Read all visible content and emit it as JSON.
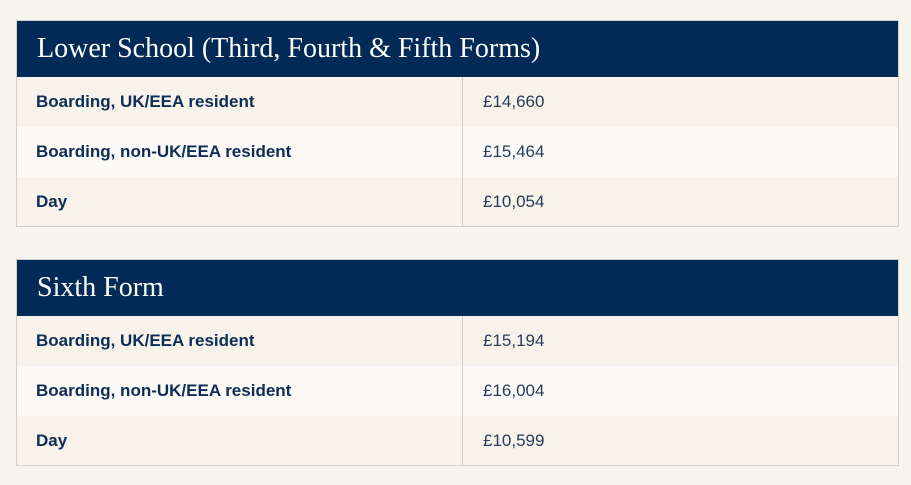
{
  "tables": [
    {
      "title": "Lower School (Third, Fourth & Fifth Forms)",
      "rows": [
        {
          "label": "Boarding, UK/EEA resident",
          "fee": "£14,660"
        },
        {
          "label": "Boarding, non-UK/EEA resident",
          "fee": "£15,464"
        },
        {
          "label": "Day",
          "fee": "£10,054"
        }
      ]
    },
    {
      "title": "Sixth Form",
      "rows": [
        {
          "label": "Boarding, UK/EEA resident",
          "fee": "£15,194"
        },
        {
          "label": "Boarding, non-UK/EEA resident",
          "fee": "£16,004"
        },
        {
          "label": "Day",
          "fee": "£10,599"
        }
      ]
    }
  ]
}
